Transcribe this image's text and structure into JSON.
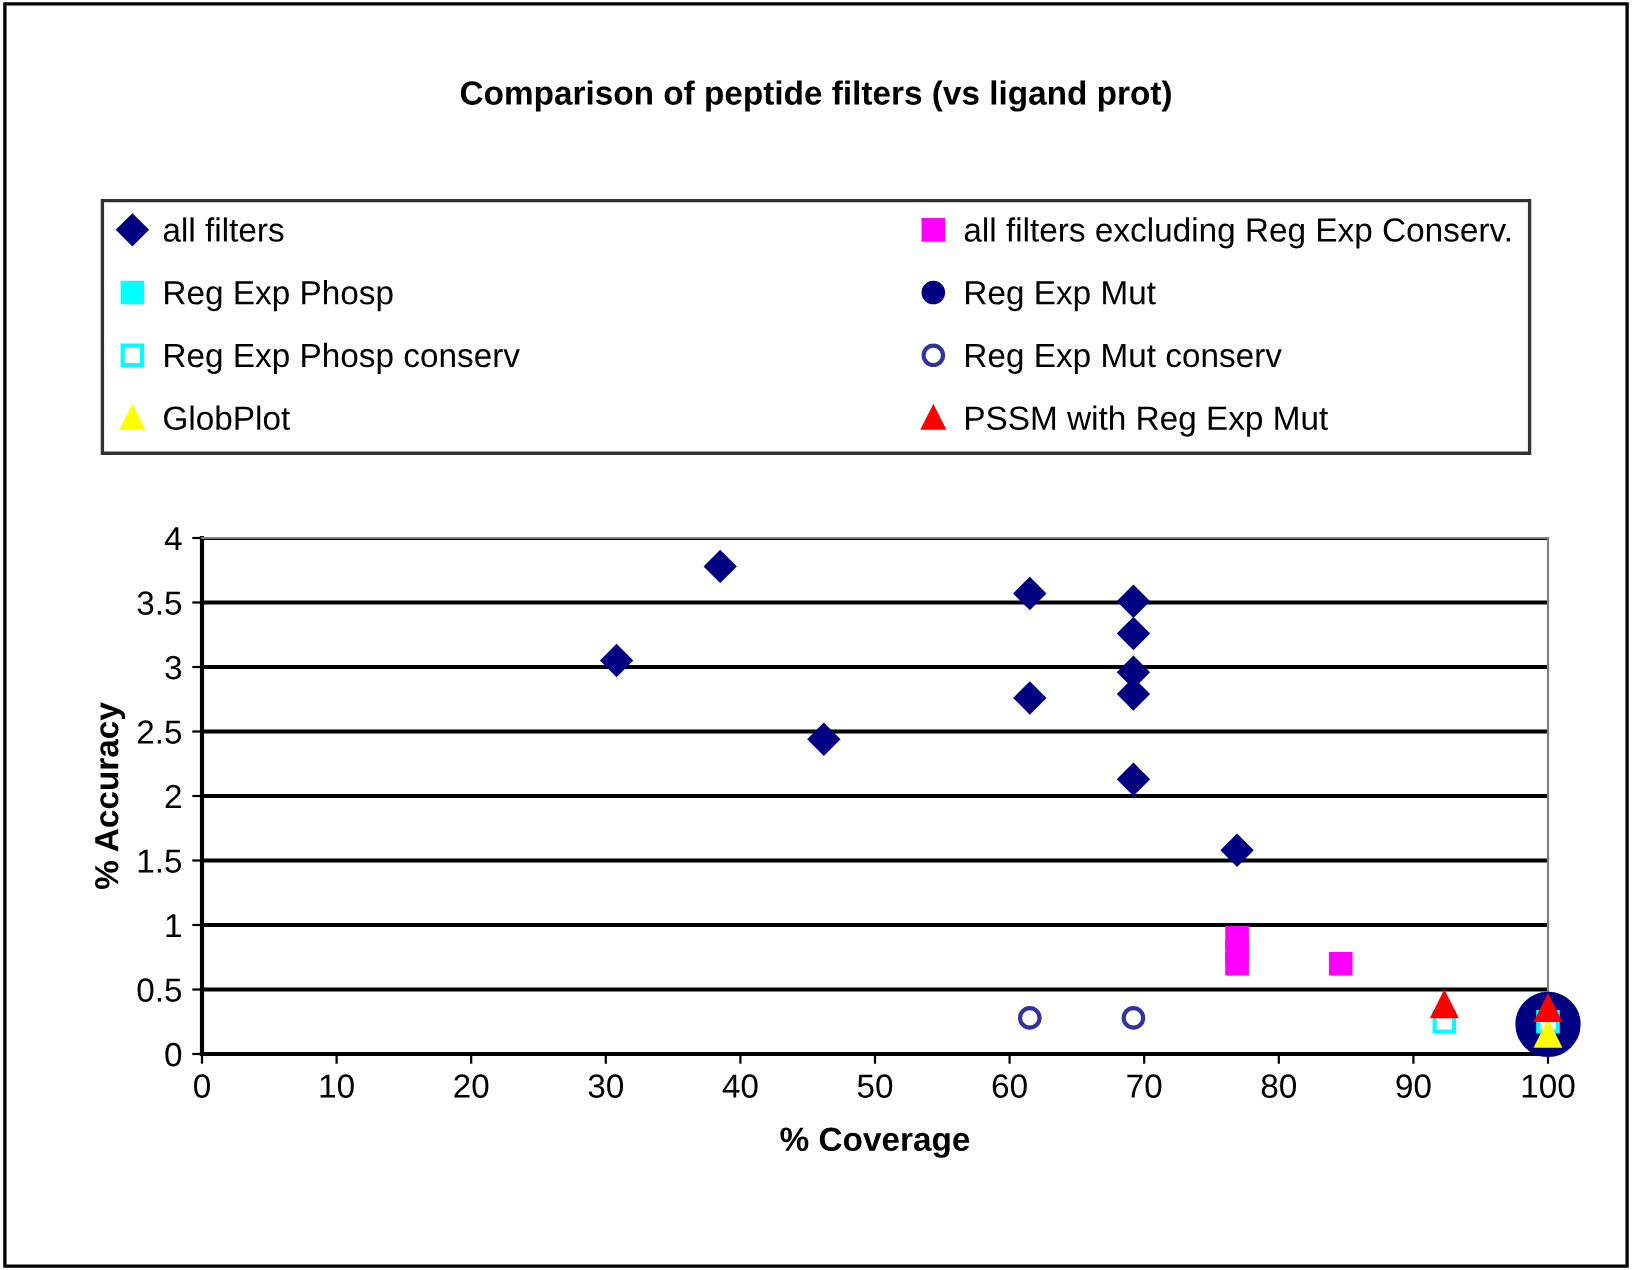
{
  "chart_data": {
    "type": "scatter",
    "title": "Comparison of peptide filters (vs ligand prot)",
    "xlabel": "% Coverage",
    "ylabel": "% Accuracy",
    "xlim": [
      0,
      100
    ],
    "xticks": [
      0,
      10,
      20,
      30,
      40,
      50,
      60,
      70,
      80,
      90,
      100
    ],
    "ylim": [
      0,
      4
    ],
    "yticks": [
      0,
      0.5,
      1,
      1.5,
      2,
      2.5,
      3,
      3.5,
      4
    ],
    "grid": "y",
    "legend": "top",
    "series": [
      {
        "name": "all filters",
        "color": "#000080",
        "marker": "diamond",
        "x": [
          30.8,
          38.5,
          46.2,
          61.5,
          61.5,
          69.2,
          69.2,
          69.2,
          69.2,
          69.2,
          76.9
        ],
        "values": [
          3.05,
          3.78,
          2.44,
          3.57,
          2.76,
          3.51,
          3.26,
          2.96,
          2.79,
          2.13,
          1.58
        ]
      },
      {
        "name": "all filters excluding Reg Exp Conserv.",
        "color": "#ff00ff",
        "marker": "square",
        "x": [
          76.9,
          76.9,
          76.9,
          84.6
        ],
        "values": [
          0.7,
          0.8,
          0.9,
          0.7
        ]
      },
      {
        "name": "Reg Exp Phosp",
        "color": "#00ffff",
        "marker": "square"
      },
      {
        "name": "Reg Exp Mut",
        "color": "#000080",
        "marker": "circle",
        "x": [
          100
        ],
        "values": [
          0.23
        ]
      },
      {
        "name": "Reg Exp Phosp conserv",
        "color": "#00ffff",
        "marker": "square",
        "x": [
          92.3,
          100
        ],
        "values": [
          0.25,
          0.25
        ]
      },
      {
        "name": "Reg Exp Mut conserv",
        "color": "#333399",
        "marker": "circle",
        "x": [
          61.5,
          69.2
        ],
        "values": [
          0.28,
          0.28
        ]
      },
      {
        "name": "GlobPlot",
        "color": "#ffff00",
        "marker": "triangle",
        "x": [
          100
        ],
        "values": [
          0.15
        ]
      },
      {
        "name": "PSSM with Reg Exp Mut",
        "color": "#ff0000",
        "marker": "triangle",
        "x": [
          92.3,
          100
        ],
        "values": [
          0.38,
          0.35
        ]
      }
    ]
  }
}
